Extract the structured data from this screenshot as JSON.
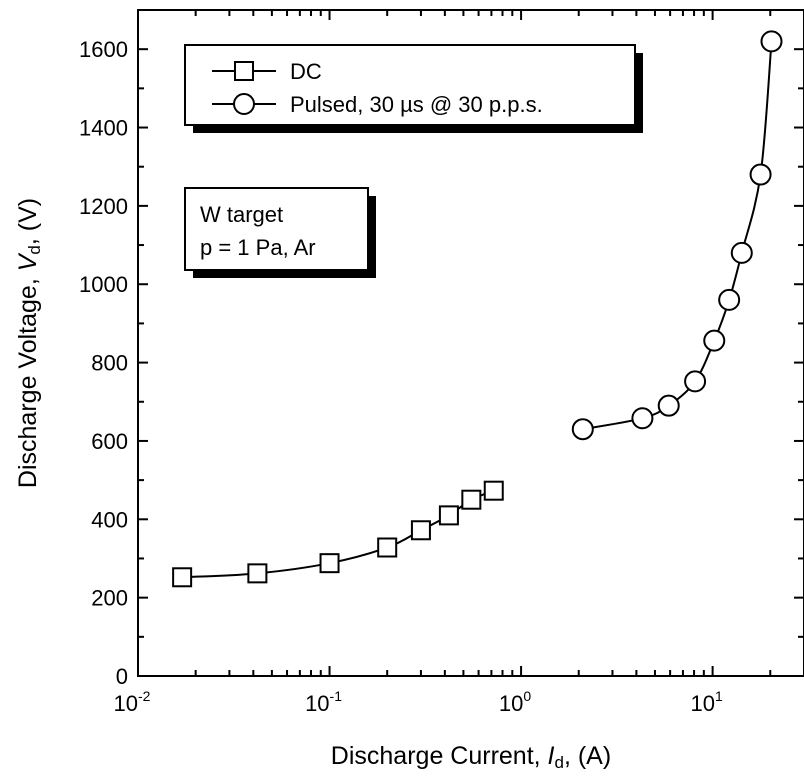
{
  "chart_data": {
    "type": "line",
    "xscale": "log",
    "xlim": [
      0.01,
      30
    ],
    "ylim": [
      0,
      1700
    ],
    "x_ticks": [
      {
        "value": 0.01,
        "base": "10",
        "exp": "-2"
      },
      {
        "value": 0.1,
        "base": "10",
        "exp": "-1"
      },
      {
        "value": 1,
        "base": "10",
        "exp": "0"
      },
      {
        "value": 10,
        "base": "10",
        "exp": "1"
      }
    ],
    "y_ticks": [
      0,
      200,
      400,
      600,
      800,
      1000,
      1200,
      1400,
      1600
    ],
    "xlabel": {
      "prefix": "Discharge Current, ",
      "symbol": "I",
      "subscript": "d",
      "suffix": ", (A)"
    },
    "ylabel": {
      "prefix": "Discharge Voltage, ",
      "symbol": "V",
      "subscript": "d",
      "suffix": ", (V)"
    },
    "grid": false,
    "legend_position": "top-left",
    "series": [
      {
        "name": "DC",
        "marker": "square",
        "x": [
          0.017,
          0.042,
          0.1,
          0.2,
          0.3,
          0.42,
          0.55,
          0.72
        ],
        "y": [
          252,
          262,
          288,
          328,
          372,
          410,
          450,
          473
        ]
      },
      {
        "name": "Pulsed, 30 µs @ 30 p.p.s.",
        "marker": "circle",
        "x": [
          2.1,
          4.3,
          5.9,
          8.1,
          10.2,
          12.2,
          14.2,
          17.8,
          20.3
        ],
        "y": [
          630,
          658,
          690,
          752,
          856,
          960,
          1080,
          1280,
          1620
        ]
      }
    ],
    "annotation": {
      "line1": "W target",
      "line2": "p = 1 Pa, Ar"
    }
  }
}
